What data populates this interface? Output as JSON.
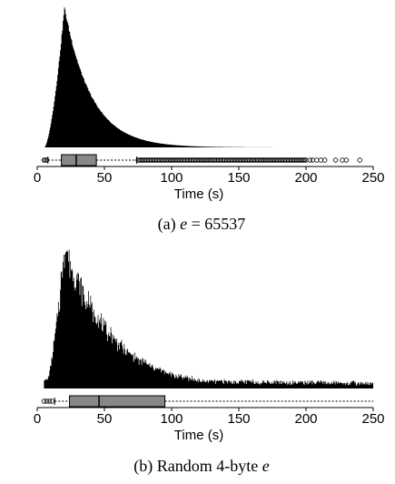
{
  "chart_data": [
    {
      "type": "histogram",
      "caption_prefix": "(a) ",
      "caption_var": "e",
      "caption_suffix": " = 65537",
      "xlabel": "Time (s)",
      "xlim": [
        0,
        250
      ],
      "x_ticks": [
        "0",
        "50",
        "100",
        "150",
        "200",
        "250"
      ],
      "grid": false,
      "bar_color": "#000000",
      "histogram": {
        "bin_width": 1,
        "x_start": 5,
        "x_end": 197,
        "peak_x": 20,
        "peak_height": 1.0,
        "shape": "right-skewed",
        "rise_width": 8,
        "decay_scale": 20
      },
      "boxplot": {
        "whisker_low": 8,
        "q1": 18,
        "median": 29,
        "q3": 44,
        "whisker_high": 74,
        "box_color": "#888888",
        "outliers_low": [
          5,
          6,
          7
        ],
        "outliers_high_dense_range": [
          75,
          200
        ],
        "outliers_high_sparse": [
          203,
          205,
          208,
          211,
          214,
          222,
          227,
          230,
          240
        ]
      }
    },
    {
      "type": "histogram",
      "caption_prefix": "(b) Random 4-byte ",
      "caption_var": "e",
      "caption_suffix": "",
      "xlabel": "Time (s)",
      "xlim": [
        0,
        250
      ],
      "x_ticks": [
        "0",
        "50",
        "100",
        "150",
        "200",
        "250"
      ],
      "grid": false,
      "bar_color": "#000000",
      "histogram": {
        "bin_width": 1,
        "x_start": 5,
        "x_end": 250,
        "peak_x": 20,
        "peak_height": 1.0,
        "shape": "right-skewed, noisy",
        "rise_width": 8,
        "decay_scale": 35,
        "tail_floor": 0.06
      },
      "boxplot": {
        "whisker_low": 13,
        "q1": 24,
        "median": 46,
        "q3": 95,
        "whisker_high": 250,
        "box_color": "#888888",
        "outliers_low": [
          5,
          7,
          9,
          11
        ]
      }
    }
  ]
}
